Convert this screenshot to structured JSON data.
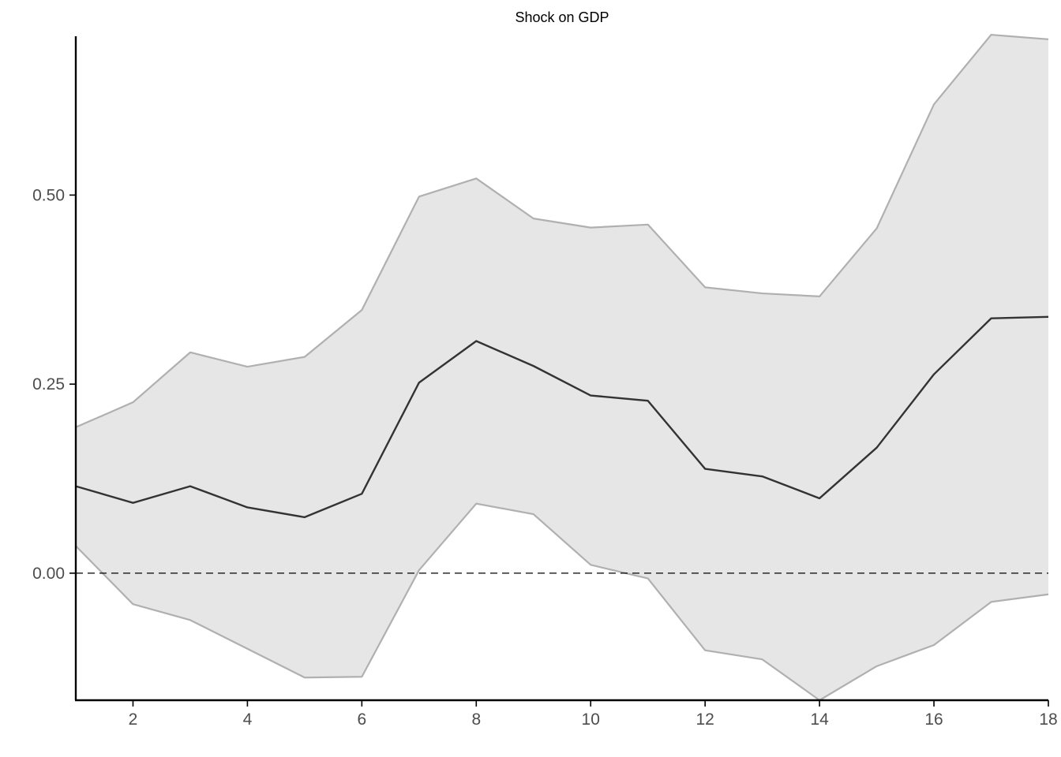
{
  "chart_data": {
    "type": "line",
    "title": "Shock on GDP",
    "xlabel": "",
    "ylabel": "",
    "xlim": [
      1,
      18
    ],
    "ylim": [
      -0.168,
      0.71
    ],
    "x_ticks": [
      2,
      4,
      6,
      8,
      10,
      12,
      14,
      16,
      18
    ],
    "y_ticks": [
      0.0,
      0.25,
      0.5
    ],
    "y_tick_labels": [
      "0.00",
      "0.25",
      "0.50"
    ],
    "grid": false,
    "legend": "none",
    "reference_line": {
      "y": 0,
      "style": "dashed"
    },
    "x": [
      1,
      2,
      3,
      4,
      5,
      6,
      7,
      8,
      9,
      10,
      11,
      12,
      13,
      14,
      15,
      16,
      17,
      18
    ],
    "series": [
      {
        "role": "estimate",
        "values": [
          0.115,
          0.093,
          0.115,
          0.087,
          0.074,
          0.105,
          0.252,
          0.307,
          0.274,
          0.235,
          0.228,
          0.138,
          0.128,
          0.099,
          0.166,
          0.263,
          0.337,
          0.339
        ]
      },
      {
        "role": "upper",
        "values": [
          0.193,
          0.226,
          0.292,
          0.273,
          0.286,
          0.348,
          0.498,
          0.522,
          0.469,
          0.457,
          0.461,
          0.378,
          0.37,
          0.366,
          0.456,
          0.62,
          0.712,
          0.706
        ]
      },
      {
        "role": "lower",
        "values": [
          0.036,
          -0.041,
          -0.062,
          -0.1,
          -0.138,
          -0.137,
          0.004,
          0.092,
          0.078,
          0.011,
          -0.007,
          -0.102,
          -0.114,
          -0.168,
          -0.123,
          -0.095,
          -0.038,
          -0.028
        ]
      }
    ],
    "colors": {
      "band_fill": "#e6e6e6",
      "band_line": "#b0b0b0",
      "estimate_line": "#333333",
      "axis": "#000000",
      "tick_label": "#4d4d4d"
    }
  }
}
